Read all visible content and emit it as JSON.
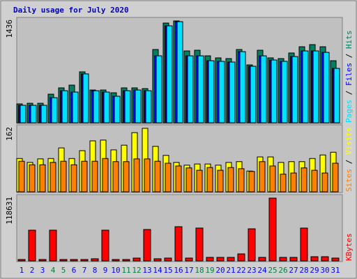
{
  "chart_data": [
    {
      "type": "bar",
      "title": "Daily usage for July 2020",
      "ylim": [
        0,
        1436
      ],
      "yticks": [
        1436
      ],
      "legend_separator": " / ",
      "series": [
        {
          "name": "Hits",
          "color": "#008060",
          "values": [
            266,
            275,
            275,
            403,
            492,
            531,
            718,
            462,
            462,
            423,
            492,
            492,
            482,
            1033,
            1406,
            1436,
            1013,
            1023,
            944,
            915,
            905,
            1033,
            816,
            1023,
            915,
            905,
            984,
            1072,
            1102,
            1072,
            875
          ]
        },
        {
          "name": "Files",
          "color": "#0000ff",
          "values": [
            246,
            246,
            246,
            354,
            452,
            433,
            689,
            452,
            433,
            374,
            452,
            462,
            452,
            944,
            1367,
            1426,
            944,
            944,
            875,
            866,
            856,
            1003,
            797,
            944,
            885,
            866,
            934,
            1013,
            1013,
            993,
            767
          ]
        },
        {
          "name": "Pages",
          "color": "#00e0ff",
          "values": [
            246,
            246,
            246,
            354,
            452,
            433,
            689,
            452,
            433,
            374,
            452,
            462,
            452,
            944,
            1367,
            1426,
            944,
            944,
            875,
            866,
            856,
            1003,
            797,
            944,
            885,
            866,
            934,
            1013,
            1013,
            993,
            767
          ]
        }
      ]
    },
    {
      "type": "bar",
      "ylim": [
        0,
        162
      ],
      "yticks": [
        162
      ],
      "legend_separator": " / ",
      "series": [
        {
          "name": "Visits",
          "color": "#ffff00",
          "values": [
            85,
            75,
            84,
            85,
            112,
            85,
            105,
            130,
            132,
            107,
            119,
            151,
            162,
            116,
            93,
            75,
            68,
            71,
            71,
            68,
            75,
            77,
            53,
            89,
            89,
            75,
            77,
            77,
            85,
            94,
            101
          ]
        },
        {
          "name": "Sites",
          "color": "#ff8000",
          "values": [
            78,
            69,
            69,
            75,
            78,
            69,
            78,
            78,
            85,
            77,
            77,
            84,
            84,
            78,
            73,
            66,
            61,
            55,
            62,
            55,
            62,
            59,
            52,
            77,
            66,
            45,
            48,
            61,
            55,
            48,
            73
          ]
        }
      ]
    },
    {
      "type": "bar",
      "ylim": [
        0,
        118631
      ],
      "yticks": [
        118631
      ],
      "categories": [
        "1",
        "2",
        "3",
        "4",
        "5",
        "6",
        "7",
        "8",
        "9",
        "10",
        "11",
        "12",
        "13",
        "14",
        "15",
        "16",
        "17",
        "18",
        "19",
        "20",
        "21",
        "22",
        "23",
        "24",
        "25",
        "26",
        "27",
        "28",
        "29",
        "30",
        "31"
      ],
      "category_color": "#0000ff",
      "highlight_color": "#008040",
      "highlighted_categories": [
        "4",
        "5",
        "11",
        "12",
        "18",
        "19",
        "25",
        "26"
      ],
      "series": [
        {
          "name": "KBytes",
          "color": "#ff0000",
          "values": [
            2600,
            58000,
            2600,
            58000,
            2600,
            2600,
            2600,
            4000,
            58000,
            2600,
            2600,
            5300,
            59300,
            4000,
            5300,
            64600,
            5300,
            62000,
            6600,
            6600,
            6600,
            13200,
            60600,
            6600,
            118631,
            6600,
            6600,
            62000,
            7900,
            7900,
            5300
          ]
        }
      ]
    }
  ]
}
